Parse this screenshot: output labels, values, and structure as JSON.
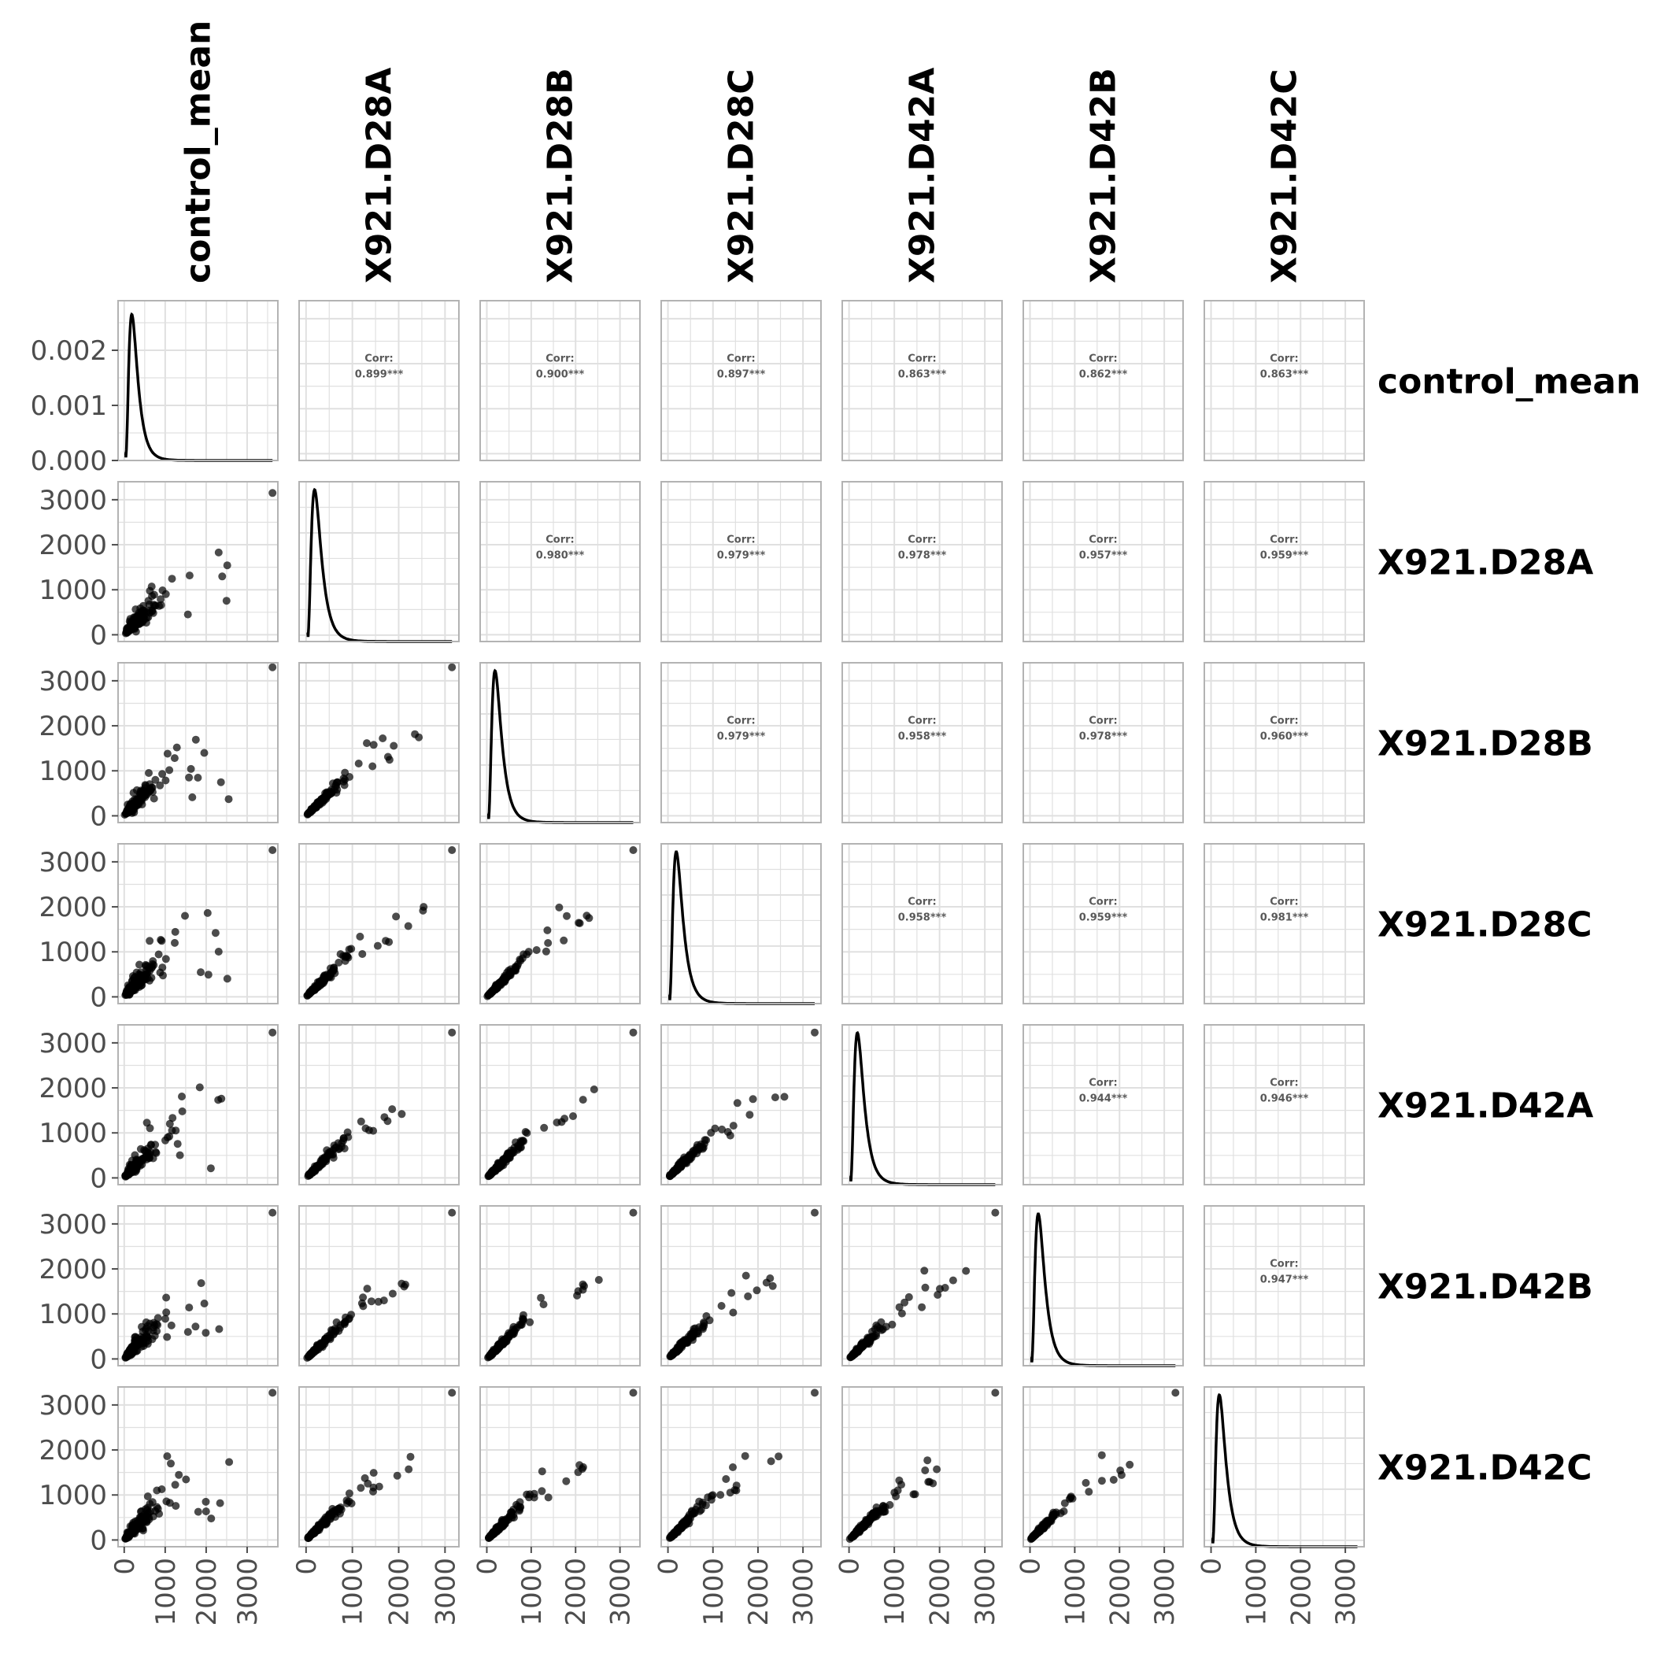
{
  "chart_data": {
    "type": "scatter",
    "variables": [
      "control_mean",
      "X921.D28A",
      "X921.D28B",
      "X921.D28C",
      "X921.D42A",
      "X921.D42B",
      "X921.D42C"
    ],
    "diagonal": "density",
    "density_axis": {
      "ticks": [
        "0.000",
        "0.001",
        "0.002"
      ],
      "ylim": [
        0,
        0.0029
      ]
    },
    "value_axis": {
      "ticks": [
        "0",
        "1000",
        "2000",
        "3000"
      ]
    },
    "xlim": {
      "control_mean": [
        -150,
        3750
      ],
      "X921.D28A": [
        -150,
        3300
      ],
      "X921.D28B": [
        -150,
        3450
      ],
      "X921.D28C": [
        -150,
        3400
      ],
      "X921.D42A": [
        -150,
        3380
      ],
      "X921.D42B": [
        -150,
        3420
      ],
      "X921.D42C": [
        -150,
        3420
      ]
    },
    "max_point": {
      "control_mean": 3620,
      "X921.D28A": 3150,
      "X921.D28B": 3300,
      "X921.D28C": 3260,
      "X921.D42A": 3230,
      "X921.D42B": 3250,
      "X921.D42C": 3270
    },
    "correlations": {
      "label": "Corr:",
      "pairs": [
        {
          "row": "control_mean",
          "col": "X921.D28A",
          "value": "0.899***"
        },
        {
          "row": "control_mean",
          "col": "X921.D28B",
          "value": "0.900***"
        },
        {
          "row": "control_mean",
          "col": "X921.D28C",
          "value": "0.897***"
        },
        {
          "row": "control_mean",
          "col": "X921.D42A",
          "value": "0.863***"
        },
        {
          "row": "control_mean",
          "col": "X921.D42B",
          "value": "0.862***"
        },
        {
          "row": "control_mean",
          "col": "X921.D42C",
          "value": "0.863***"
        },
        {
          "row": "X921.D28A",
          "col": "X921.D28B",
          "value": "0.980***"
        },
        {
          "row": "X921.D28A",
          "col": "X921.D28C",
          "value": "0.979***"
        },
        {
          "row": "X921.D28A",
          "col": "X921.D42A",
          "value": "0.978***"
        },
        {
          "row": "X921.D28A",
          "col": "X921.D42B",
          "value": "0.957***"
        },
        {
          "row": "X921.D28A",
          "col": "X921.D42C",
          "value": "0.959***"
        },
        {
          "row": "X921.D28B",
          "col": "X921.D28C",
          "value": "0.979***"
        },
        {
          "row": "X921.D28B",
          "col": "X921.D42A",
          "value": "0.958***"
        },
        {
          "row": "X921.D28B",
          "col": "X921.D42B",
          "value": "0.978***"
        },
        {
          "row": "X921.D28B",
          "col": "X921.D42C",
          "value": "0.960***"
        },
        {
          "row": "X921.D28C",
          "col": "X921.D42A",
          "value": "0.958***"
        },
        {
          "row": "X921.D28C",
          "col": "X921.D42B",
          "value": "0.959***"
        },
        {
          "row": "X921.D28C",
          "col": "X921.D42C",
          "value": "0.981***"
        },
        {
          "row": "X921.D42A",
          "col": "X921.D42B",
          "value": "0.944***"
        },
        {
          "row": "X921.D42A",
          "col": "X921.D42C",
          "value": "0.946***"
        },
        {
          "row": "X921.D42B",
          "col": "X921.D42C",
          "value": "0.947***"
        }
      ]
    },
    "grid": true,
    "point_color": "#000000",
    "point_alpha": 0.7,
    "panel_border_color": "#b3b3b3",
    "gridline_color": "#e0e0e0"
  }
}
